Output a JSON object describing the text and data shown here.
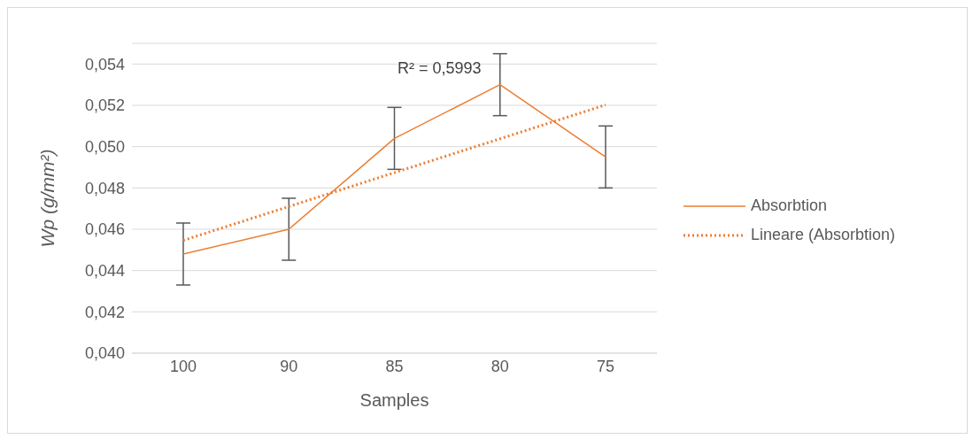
{
  "chart_data": {
    "type": "line",
    "xlabel": "Samples",
    "ylabel": "Wp (g/mm²)",
    "categories": [
      "100",
      "90",
      "85",
      "80",
      "75"
    ],
    "series": [
      {
        "name": "Absorbtion",
        "type": "line",
        "color": "#ed7d31",
        "values": [
          0.0448,
          0.046,
          0.0504,
          0.053,
          0.0495
        ],
        "errors": [
          0.0015,
          0.0015,
          0.0015,
          0.0015,
          0.0015
        ],
        "line_style": "solid"
      },
      {
        "name": "Lineare (Absorbtion)",
        "type": "line",
        "color": "#ed7d31",
        "values": [
          0.04546,
          0.0471,
          0.04874,
          0.05038,
          0.05202
        ],
        "line_style": "dotted"
      }
    ],
    "annotations": [
      "R² = 0,5993"
    ],
    "ylim": [
      0.04,
      0.055
    ],
    "yticks": [
      {
        "value": 0.04,
        "label": "0,040"
      },
      {
        "value": 0.042,
        "label": "0,042"
      },
      {
        "value": 0.044,
        "label": "0,044"
      },
      {
        "value": 0.046,
        "label": "0,046"
      },
      {
        "value": 0.048,
        "label": "0,048"
      },
      {
        "value": 0.05,
        "label": "0,050"
      },
      {
        "value": 0.052,
        "label": "0,052"
      },
      {
        "value": 0.054,
        "label": "0,054"
      }
    ],
    "grid": "y",
    "legend": "right",
    "marker": "none"
  }
}
